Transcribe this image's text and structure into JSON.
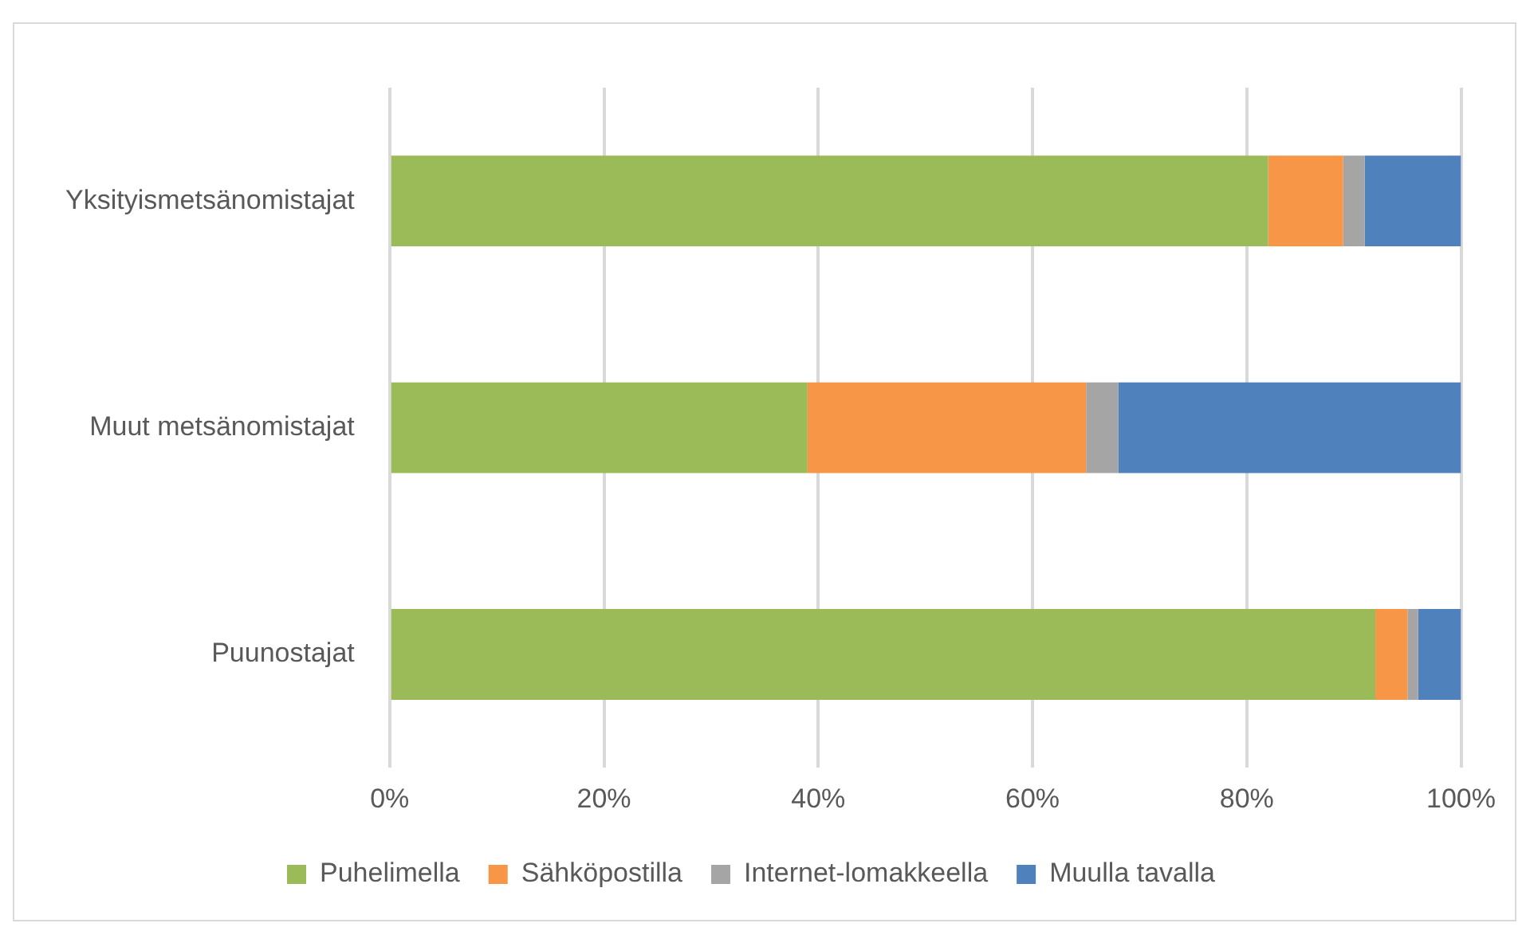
{
  "chart_data": {
    "type": "bar",
    "orientation": "horizontal",
    "stacked": true,
    "categories": [
      "Yksityismetsänomistajat",
      "Muut metsänomistajat",
      "Puunostajat"
    ],
    "series": [
      {
        "name": "Puhelimella",
        "color": "#9bbb59",
        "values": [
          82,
          39,
          92
        ]
      },
      {
        "name": "Sähköpostilla",
        "color": "#f79646",
        "values": [
          7,
          26,
          3
        ]
      },
      {
        "name": "Internet-lomakkeella",
        "color": "#a5a5a5",
        "values": [
          2,
          3,
          1
        ]
      },
      {
        "name": "Muulla tavalla",
        "color": "#4f81bd",
        "values": [
          9,
          32,
          4
        ]
      }
    ],
    "xlim": [
      0,
      100
    ],
    "xticks": [
      {
        "value": 0,
        "label": "0%"
      },
      {
        "value": 20,
        "label": "20%"
      },
      {
        "value": 40,
        "label": "40%"
      },
      {
        "value": 60,
        "label": "60%"
      },
      {
        "value": 80,
        "label": "80%"
      },
      {
        "value": 100,
        "label": "100%"
      }
    ],
    "grid": "x",
    "legend": "bottom"
  }
}
